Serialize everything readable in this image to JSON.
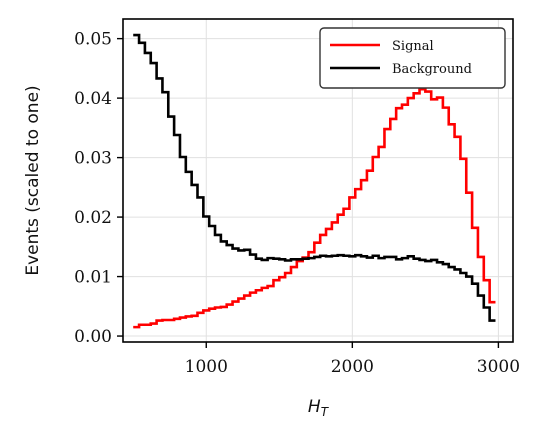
{
  "chart_data": {
    "type": "line",
    "drawstyle": "steps",
    "xlabel_base": "H",
    "xlabel_sub": "T",
    "ylabel": "Events (scaled to one)",
    "xlim": [
      430,
      3100
    ],
    "ylim": [
      -0.001,
      0.0533
    ],
    "xticks": [
      1000,
      2000,
      3000
    ],
    "xtick_labels": [
      "1000",
      "2000",
      "3000"
    ],
    "yticks": [
      0.0,
      0.01,
      0.02,
      0.03,
      0.04,
      0.05
    ],
    "ytick_labels": [
      "0.00",
      "0.01",
      "0.02",
      "0.03",
      "0.04",
      "0.05"
    ],
    "grid": true,
    "legend_position": "top-right",
    "x_edges": [
      500,
      540,
      580,
      620,
      660,
      700,
      740,
      780,
      820,
      860,
      900,
      940,
      980,
      1020,
      1060,
      1100,
      1140,
      1180,
      1220,
      1260,
      1300,
      1340,
      1380,
      1420,
      1460,
      1500,
      1540,
      1580,
      1620,
      1660,
      1700,
      1740,
      1780,
      1820,
      1860,
      1900,
      1940,
      1980,
      2020,
      2060,
      2100,
      2140,
      2180,
      2220,
      2260,
      2300,
      2340,
      2380,
      2420,
      2460,
      2500,
      2540,
      2580,
      2620,
      2660,
      2700,
      2740,
      2780,
      2820,
      2860,
      2900,
      2940,
      2980
    ],
    "series": [
      {
        "name": "Signal",
        "color": "#ff0000",
        "values": [
          0.0015,
          0.0019,
          0.0019,
          0.0021,
          0.0026,
          0.0027,
          0.0027,
          0.0029,
          0.0031,
          0.0033,
          0.0034,
          0.0039,
          0.0043,
          0.0046,
          0.0048,
          0.0049,
          0.0053,
          0.0058,
          0.0063,
          0.0068,
          0.0073,
          0.0077,
          0.0081,
          0.0084,
          0.0094,
          0.0099,
          0.0106,
          0.0116,
          0.0126,
          0.0132,
          0.0141,
          0.0157,
          0.017,
          0.018,
          0.0191,
          0.0204,
          0.0214,
          0.0233,
          0.0247,
          0.0262,
          0.0278,
          0.0301,
          0.0318,
          0.0348,
          0.0365,
          0.0383,
          0.0389,
          0.04,
          0.0408,
          0.0415,
          0.0411,
          0.0398,
          0.0401,
          0.0384,
          0.0356,
          0.0335,
          0.0298,
          0.0241,
          0.0182,
          0.0133,
          0.0094,
          0.0057
        ]
      },
      {
        "name": "Background",
        "color": "#000000",
        "values": [
          0.0506,
          0.0493,
          0.0476,
          0.0459,
          0.0433,
          0.041,
          0.0369,
          0.0338,
          0.0301,
          0.0276,
          0.0254,
          0.0233,
          0.0201,
          0.0185,
          0.017,
          0.0159,
          0.0153,
          0.0147,
          0.0144,
          0.0145,
          0.0137,
          0.013,
          0.0128,
          0.0131,
          0.013,
          0.0129,
          0.0127,
          0.0129,
          0.0129,
          0.013,
          0.0131,
          0.0133,
          0.0135,
          0.0134,
          0.0135,
          0.0136,
          0.0135,
          0.0134,
          0.0136,
          0.0134,
          0.0132,
          0.0135,
          0.0131,
          0.0133,
          0.0133,
          0.0129,
          0.0131,
          0.0134,
          0.013,
          0.0128,
          0.0126,
          0.0128,
          0.0124,
          0.0121,
          0.0116,
          0.0112,
          0.0106,
          0.01,
          0.0088,
          0.0068,
          0.0048,
          0.0026
        ]
      }
    ]
  }
}
